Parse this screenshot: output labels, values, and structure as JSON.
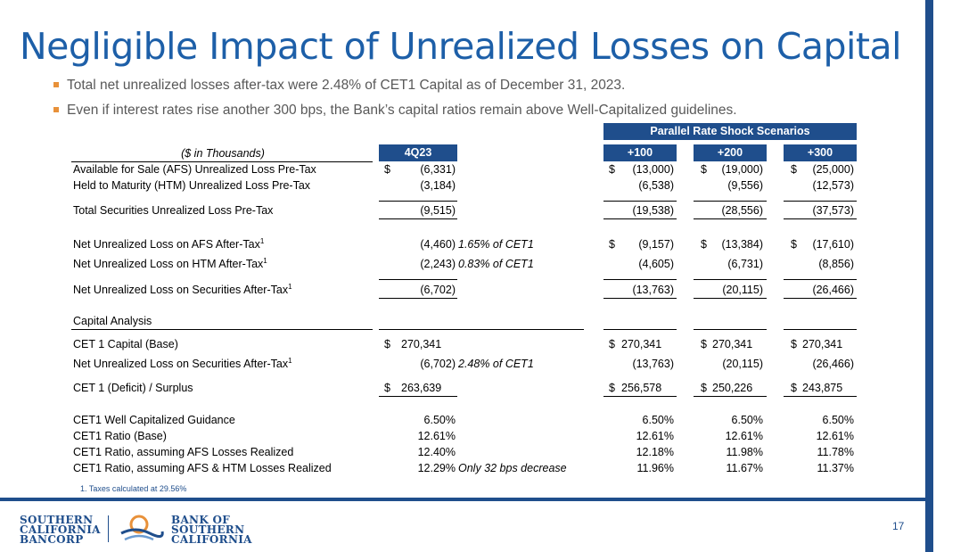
{
  "title": "Negligible Impact of Unrealized Losses on Capital",
  "bullets": [
    "Total net unrealized losses after-tax were 2.48% of CET1 Capital as of December 31, 2023.",
    "Even if interest rates rise another 300 bps, the Bank’s capital ratios remain above Well-Capitalized guidelines."
  ],
  "table": {
    "scenario_header": "Parallel Rate Shock Scenarios",
    "units_label": "($ in Thousands)",
    "col_headers": [
      "4Q23",
      "+100",
      "+200",
      "+300"
    ],
    "rows": {
      "afs_pre": {
        "label": "Available for Sale (AFS) Unrealized Loss Pre-Tax",
        "q": "(6,331)",
        "p100": "(13,000)",
        "p200": "(19,000)",
        "p300": "(25,000)"
      },
      "htm_pre": {
        "label": "Held to Maturity (HTM) Unrealized Loss Pre-Tax",
        "q": "(3,184)",
        "p100": "(6,538)",
        "p200": "(9,556)",
        "p300": "(12,573)"
      },
      "total_pre": {
        "label": "Total Securities Unrealized Loss Pre-Tax",
        "q": "(9,515)",
        "p100": "(19,538)",
        "p200": "(28,556)",
        "p300": "(37,573)"
      },
      "afs_after": {
        "label": "Net Unrealized Loss on AFS After-Tax",
        "q": "(4,460)",
        "note": "1.65% of CET1",
        "p100": "(9,157)",
        "p200": "(13,384)",
        "p300": "(17,610)"
      },
      "htm_after": {
        "label": "Net Unrealized Loss on HTM After-Tax",
        "q": "(2,243)",
        "note": "0.83% of CET1",
        "p100": "(4,605)",
        "p200": "(6,731)",
        "p300": "(8,856)"
      },
      "sec_after": {
        "label": "Net Unrealized Loss on Securities After-Tax",
        "q": "(6,702)",
        "p100": "(13,763)",
        "p200": "(20,115)",
        "p300": "(26,466)"
      },
      "capital_analysis": {
        "label": "Capital Analysis"
      },
      "cet1_base": {
        "label": "CET 1 Capital (Base)",
        "q": "270,341",
        "p100": "270,341",
        "p200": "270,341",
        "p300": "270,341"
      },
      "sec_after2": {
        "label": "Net Unrealized Loss on Securities After-Tax",
        "q": "(6,702)",
        "note": "2.48% of CET1",
        "p100": "(13,763)",
        "p200": "(20,115)",
        "p300": "(26,466)"
      },
      "surplus": {
        "label": "CET 1 (Deficit) / Surplus",
        "q": "263,639",
        "p100": "256,578",
        "p200": "250,226",
        "p300": "243,875"
      },
      "guidance": {
        "label": "CET1 Well Capitalized Guidance",
        "q": "6.50%",
        "p100": "6.50%",
        "p200": "6.50%",
        "p300": "6.50%"
      },
      "ratio_base": {
        "label": "CET1 Ratio (Base)",
        "q": "12.61%",
        "p100": "12.61%",
        "p200": "12.61%",
        "p300": "12.61%"
      },
      "ratio_afs": {
        "label": "CET1 Ratio, assuming AFS Losses Realized",
        "q": "12.40%",
        "p100": "12.18%",
        "p200": "11.98%",
        "p300": "11.78%"
      },
      "ratio_all": {
        "label": "CET1 Ratio, assuming AFS & HTM Losses Realized",
        "q": "12.29%",
        "note": "Only 32 bps decrease",
        "p100": "11.96%",
        "p200": "11.67%",
        "p300": "11.37%"
      }
    },
    "dollar": "$",
    "sup": "1"
  },
  "footnote": "1. Taxes calculated at 29.56%",
  "page_number": "17",
  "logo_left": [
    "SOUTHERN",
    "CALIFORNIA",
    "BANCORP"
  ],
  "logo_right": [
    "BANK OF",
    "SOUTHERN",
    "CALIFORNIA"
  ],
  "colors": {
    "brand_blue": "#1f4e8c",
    "title_blue": "#1d5fa8",
    "bullet_orange": "#e8913a"
  }
}
